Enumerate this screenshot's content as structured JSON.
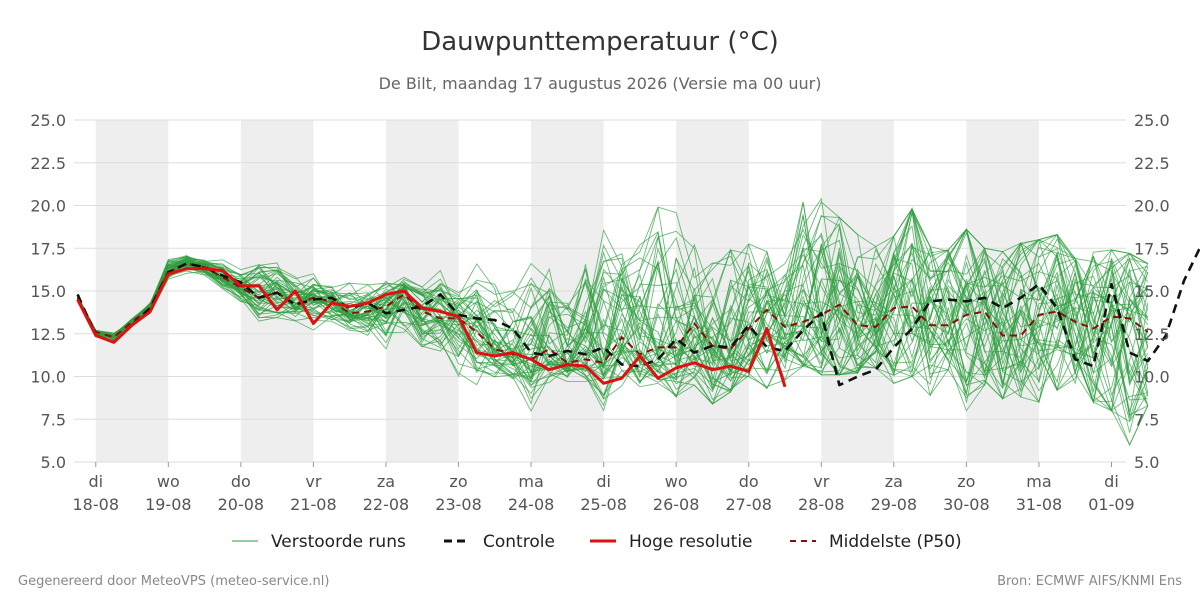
{
  "header": {
    "title": "Dauwpunttemperatuur (°C)",
    "subtitle": "De Bilt, maandag 17 augustus 2026 (Versie ma 00 uur)"
  },
  "footer": {
    "left": "Gegenereerd door MeteoVPS (meteo-service.nl)",
    "right": "Bron: ECMWF AIFS/KNMI Ens"
  },
  "colors": {
    "ensemble": "#2e9e3e",
    "controle": "#111111",
    "hoge_resolutie": "#dd1111",
    "middelste": "#8b0f0f",
    "band": "#eeeeee",
    "grid": "#dddddd"
  },
  "chart_data": {
    "type": "line",
    "title": "Dauwpunttemperatuur (°C)",
    "subtitle": "De Bilt, maandag 17 augustus 2026 (Versie ma 00 uur)",
    "ylim": [
      5,
      25
    ],
    "yticks": [
      "25.0",
      "22.5",
      "20.0",
      "17.5",
      "15.0",
      "12.5",
      "10.0",
      "7.5",
      "5.0"
    ],
    "x_unit": "days since 2026-08-17 00:00",
    "xlim": [
      0.7,
      15.2
    ],
    "grid": true,
    "legend_position": "bottom",
    "day_ticks": [
      {
        "x": 1,
        "day": "di",
        "date": "18-08"
      },
      {
        "x": 2,
        "day": "wo",
        "date": "19-08"
      },
      {
        "x": 3,
        "day": "do",
        "date": "20-08"
      },
      {
        "x": 4,
        "day": "vr",
        "date": "21-08"
      },
      {
        "x": 5,
        "day": "za",
        "date": "22-08"
      },
      {
        "x": 6,
        "day": "zo",
        "date": "23-08"
      },
      {
        "x": 7,
        "day": "ma",
        "date": "24-08"
      },
      {
        "x": 8,
        "day": "di",
        "date": "25-08"
      },
      {
        "x": 9,
        "day": "wo",
        "date": "26-08"
      },
      {
        "x": 10,
        "day": "do",
        "date": "27-08"
      },
      {
        "x": 11,
        "day": "vr",
        "date": "28-08"
      },
      {
        "x": 12,
        "day": "za",
        "date": "29-08"
      },
      {
        "x": 13,
        "day": "zo",
        "date": "30-08"
      },
      {
        "x": 14,
        "day": "ma",
        "date": "31-08"
      },
      {
        "x": 15,
        "day": "di",
        "date": "01-09"
      }
    ],
    "shaded_days": [
      [
        1,
        2
      ],
      [
        3,
        4
      ],
      [
        5,
        6
      ],
      [
        7,
        8
      ],
      [
        9,
        10
      ],
      [
        11,
        12
      ],
      [
        13,
        14
      ]
    ],
    "legend": [
      {
        "key": "ensemble",
        "label": "Verstoorde runs",
        "style": "thin"
      },
      {
        "key": "controle",
        "label": "Controle",
        "style": "dashed"
      },
      {
        "key": "hoge_resolutie",
        "label": "Hoge resolutie",
        "style": "solid"
      },
      {
        "key": "middelste",
        "label": "Middelste (P50)",
        "style": "dashed"
      }
    ],
    "series": [
      {
        "name": "Controle",
        "key": "controle",
        "x_start": 0.75,
        "x_step": 0.25,
        "values": [
          14.8,
          12.4,
          12.0,
          13.0,
          14.0,
          16.1,
          16.6,
          16.4,
          15.9,
          15.5,
          14.6,
          14.9,
          14.2,
          14.5,
          14.6,
          14.0,
          14.3,
          13.7,
          13.9,
          14.1,
          14.8,
          13.6,
          13.4,
          13.3,
          12.8,
          11.4,
          11.2,
          11.5,
          11.3,
          11.7,
          10.7,
          10.6,
          11.0,
          12.2,
          11.4,
          11.8,
          11.7,
          13.0,
          11.7,
          11.5,
          12.7,
          13.7,
          9.5,
          10.0,
          10.4,
          11.7,
          12.8,
          14.4,
          14.5,
          14.4,
          14.6,
          14.0,
          14.6,
          15.4,
          14.0,
          11.0,
          10.6,
          15.4,
          11.4,
          10.9,
          12.4,
          15.6,
          17.8,
          15.3
        ]
      },
      {
        "name": "Hoge resolutie",
        "key": "hoge_resolutie",
        "x_start": 0.75,
        "x_step": 0.25,
        "values": [
          14.5,
          12.4,
          12.0,
          13.0,
          13.8,
          16.0,
          16.3,
          16.3,
          16.2,
          15.3,
          15.3,
          13.9,
          15.0,
          13.1,
          14.3,
          14.1,
          14.3,
          14.8,
          15.0,
          14.0,
          13.8,
          13.5,
          11.4,
          11.2,
          11.4,
          11.0,
          10.4,
          10.7,
          10.6,
          9.6,
          9.9,
          11.2,
          9.9,
          10.5,
          10.8,
          10.4,
          10.6,
          10.3,
          12.8,
          9.4
        ]
      },
      {
        "name": "Middelste (P50)",
        "key": "middelste",
        "x_start": 0.75,
        "x_step": 0.25,
        "values": [
          14.6,
          12.6,
          12.3,
          13.2,
          14.0,
          16.1,
          16.6,
          16.4,
          15.8,
          15.2,
          14.6,
          14.9,
          14.2,
          14.6,
          14.4,
          13.7,
          13.8,
          14.1,
          14.8,
          13.8,
          13.4,
          13.4,
          12.6,
          11.6,
          11.3,
          11.0,
          11.6,
          10.8,
          11.0,
          10.8,
          12.3,
          11.3,
          11.7,
          11.7,
          13.1,
          11.8,
          11.6,
          12.8,
          13.9,
          12.9,
          13.2,
          13.6,
          14.2,
          13.0,
          12.9,
          14.0,
          14.1,
          13.0,
          13.0,
          13.6,
          13.8,
          12.4,
          12.4,
          13.6,
          13.8,
          13.2,
          12.8,
          13.5,
          13.4,
          12.6
        ]
      }
    ],
    "ensemble": {
      "name": "Verstoorde runs",
      "x_start": 0.75,
      "x_step": 0.25,
      "members": 50,
      "median": [
        14.6,
        12.6,
        12.3,
        13.2,
        14.0,
        16.1,
        16.6,
        16.4,
        15.8,
        15.2,
        14.6,
        14.9,
        14.2,
        14.6,
        14.4,
        13.7,
        13.8,
        14.1,
        14.8,
        13.8,
        13.4,
        13.4,
        12.6,
        11.6,
        11.3,
        11.0,
        11.6,
        10.8,
        11.0,
        10.8,
        12.3,
        11.3,
        11.7,
        11.7,
        13.1,
        11.8,
        11.6,
        12.8,
        13.9,
        12.9,
        13.2,
        13.6,
        14.2,
        13.0,
        12.9,
        14.0,
        14.1,
        13.0,
        13.0,
        13.6,
        13.8,
        12.4,
        12.4,
        13.6,
        13.8,
        13.2,
        12.8,
        13.5,
        13.4,
        12.6
      ],
      "min": [
        14.0,
        11.1,
        11.1,
        12.0,
        13.2,
        15.3,
        15.6,
        15.4,
        14.6,
        13.5,
        12.2,
        12.6,
        12.9,
        12.1,
        12.6,
        12.3,
        11.9,
        10.3,
        11.4,
        10.9,
        10.8,
        9.3,
        8.5,
        9.8,
        9.7,
        7.8,
        9.5,
        9.6,
        9.5,
        8.0,
        9.3,
        9.4,
        9.6,
        8.8,
        9.5,
        8.4,
        9.1,
        9.9,
        9.3,
        9.8,
        10.6,
        10.1,
        10.1,
        10.2,
        10.5,
        9.6,
        10.0,
        8.9,
        10.4,
        8.0,
        9.5,
        8.7,
        8.8,
        8.5,
        9.2,
        9.6,
        8.5,
        8.0,
        6.0,
        8.3
      ],
      "max": [
        15.5,
        13.1,
        13.3,
        14.1,
        15.0,
        17.9,
        17.6,
        17.2,
        17.5,
        17.0,
        18.6,
        17.7,
        16.5,
        16.6,
        15.7,
        16.4,
        16.3,
        16.4,
        16.3,
        15.5,
        16.2,
        15.4,
        16.8,
        15.6,
        15.0,
        16.6,
        16.5,
        14.7,
        18.1,
        19.9,
        18.0,
        17.7,
        19.9,
        19.8,
        17.7,
        16.8,
        17.4,
        18.2,
        17.3,
        16.6,
        20.2,
        20.4,
        19.3,
        18.3,
        17.6,
        18.2,
        19.8,
        17.6,
        17.4,
        18.6,
        17.5,
        17.3,
        17.8,
        18.0,
        18.3,
        16.9,
        17.6,
        17.4,
        17.2,
        16.6
      ]
    }
  }
}
